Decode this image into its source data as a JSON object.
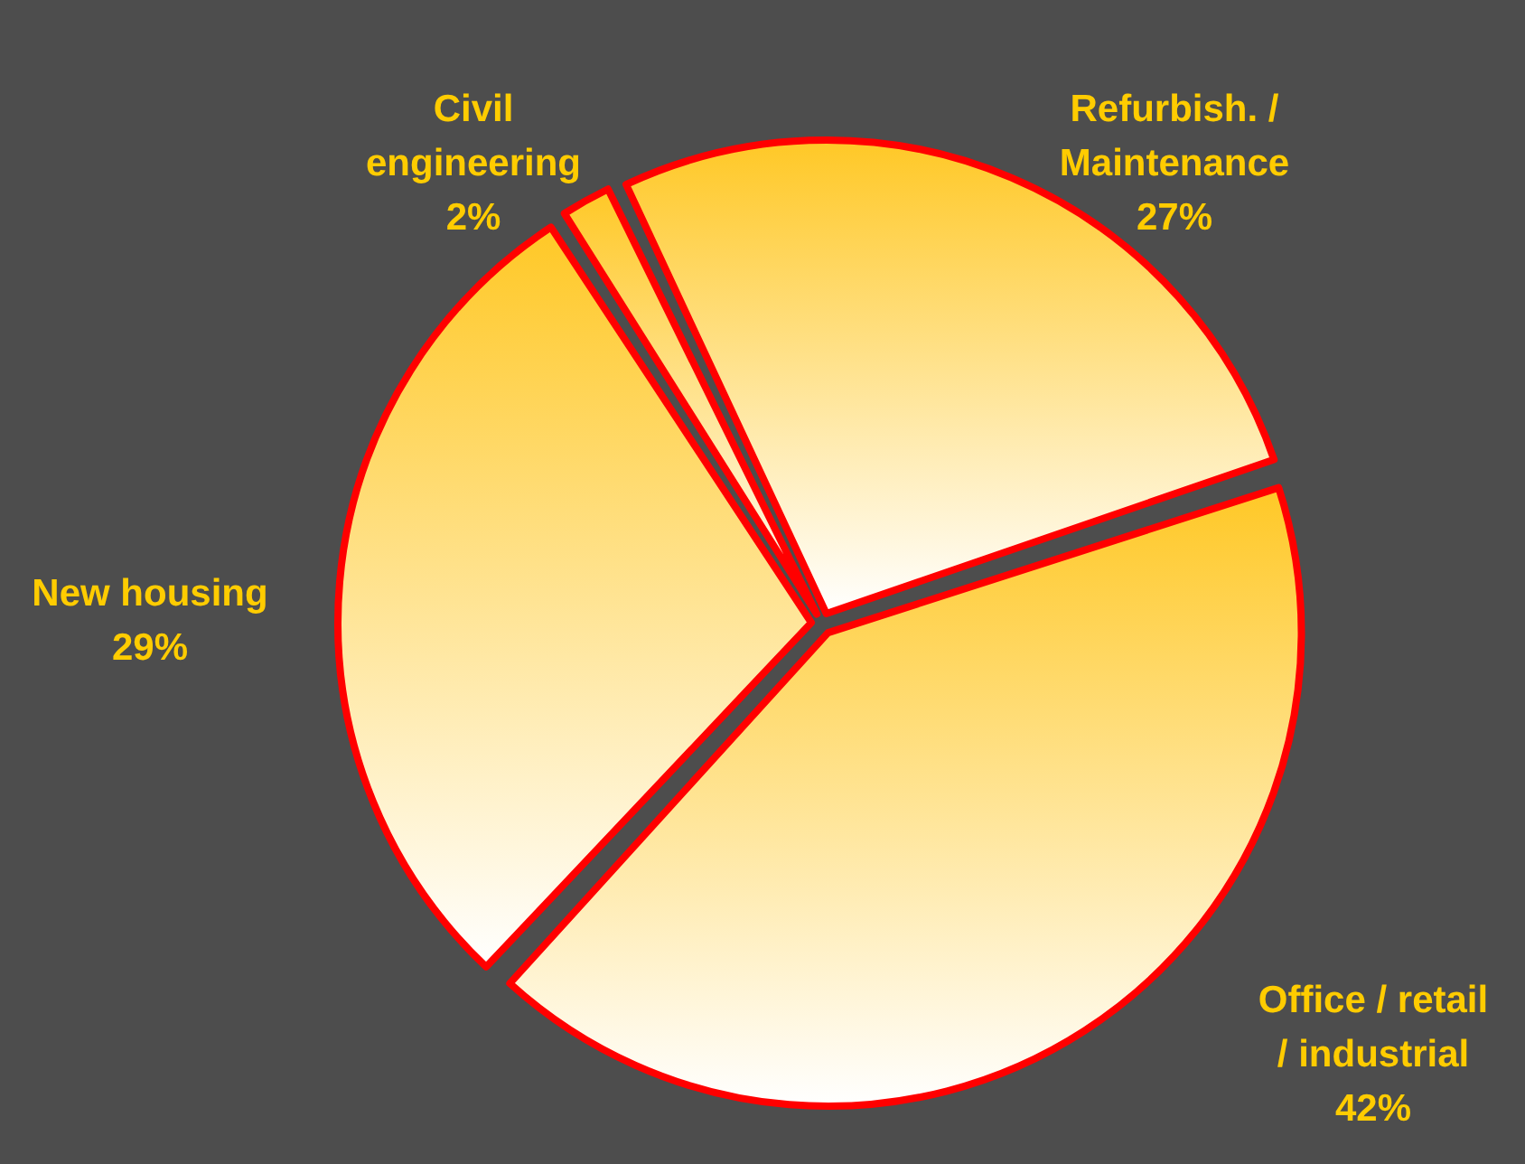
{
  "chart_data": {
    "type": "pie",
    "categories": [
      "Refurbish. /\nMaintenance",
      "Office / retail\n/ industrial",
      "New housing",
      "Civil\nengineering"
    ],
    "values": [
      27,
      42,
      29,
      2
    ],
    "value_labels": [
      "27%",
      "42%",
      "29%",
      "2%"
    ],
    "colors": [
      "#ffc826",
      "#ffc826",
      "#ffc826",
      "#ffc826"
    ]
  }
}
